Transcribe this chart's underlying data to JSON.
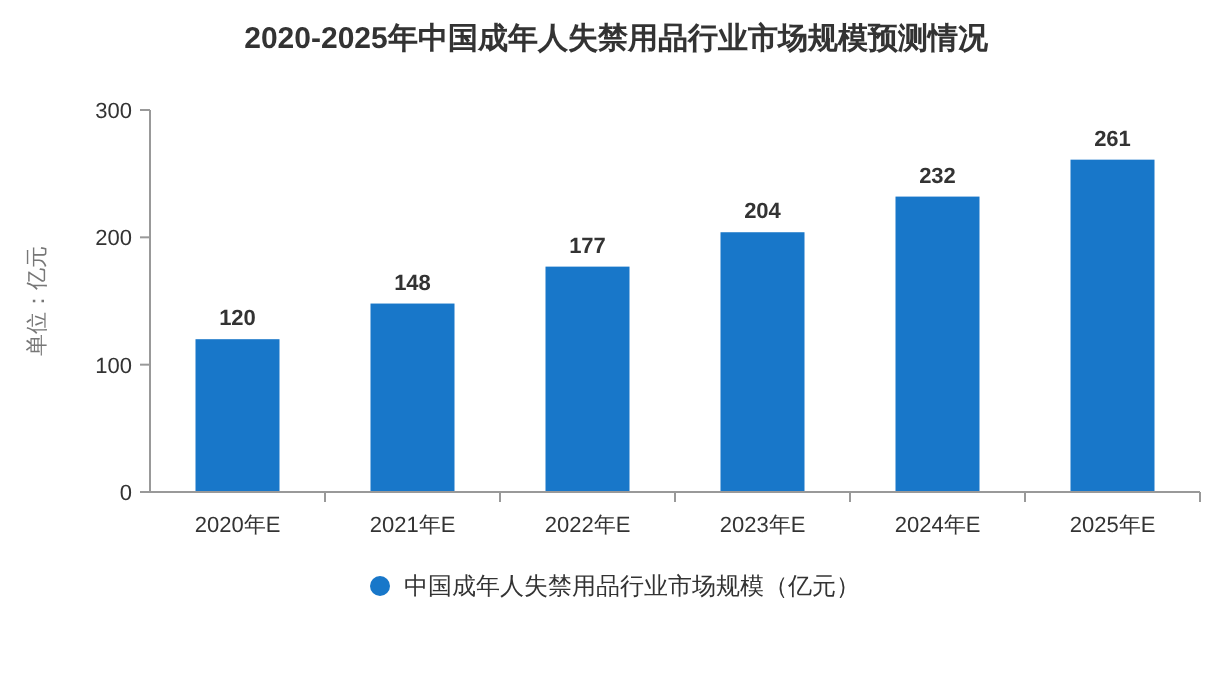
{
  "chart_data": {
    "type": "bar",
    "title": "2020-2025年中国成年人失禁用品行业市场规模预测情况",
    "ylabel": "单位：亿元",
    "categories": [
      "2020年E",
      "2021年E",
      "2022年E",
      "2023年E",
      "2024年E",
      "2025年E"
    ],
    "series": [
      {
        "name": "中国成年人失禁用品行业市场规模（亿元）",
        "color": "#1877c9",
        "values": [
          120,
          148,
          177,
          204,
          232,
          261
        ]
      }
    ],
    "ylim": [
      0,
      300
    ],
    "yticks": [
      0,
      100,
      200,
      300
    ],
    "data_labels": true,
    "legend": "bottom"
  }
}
